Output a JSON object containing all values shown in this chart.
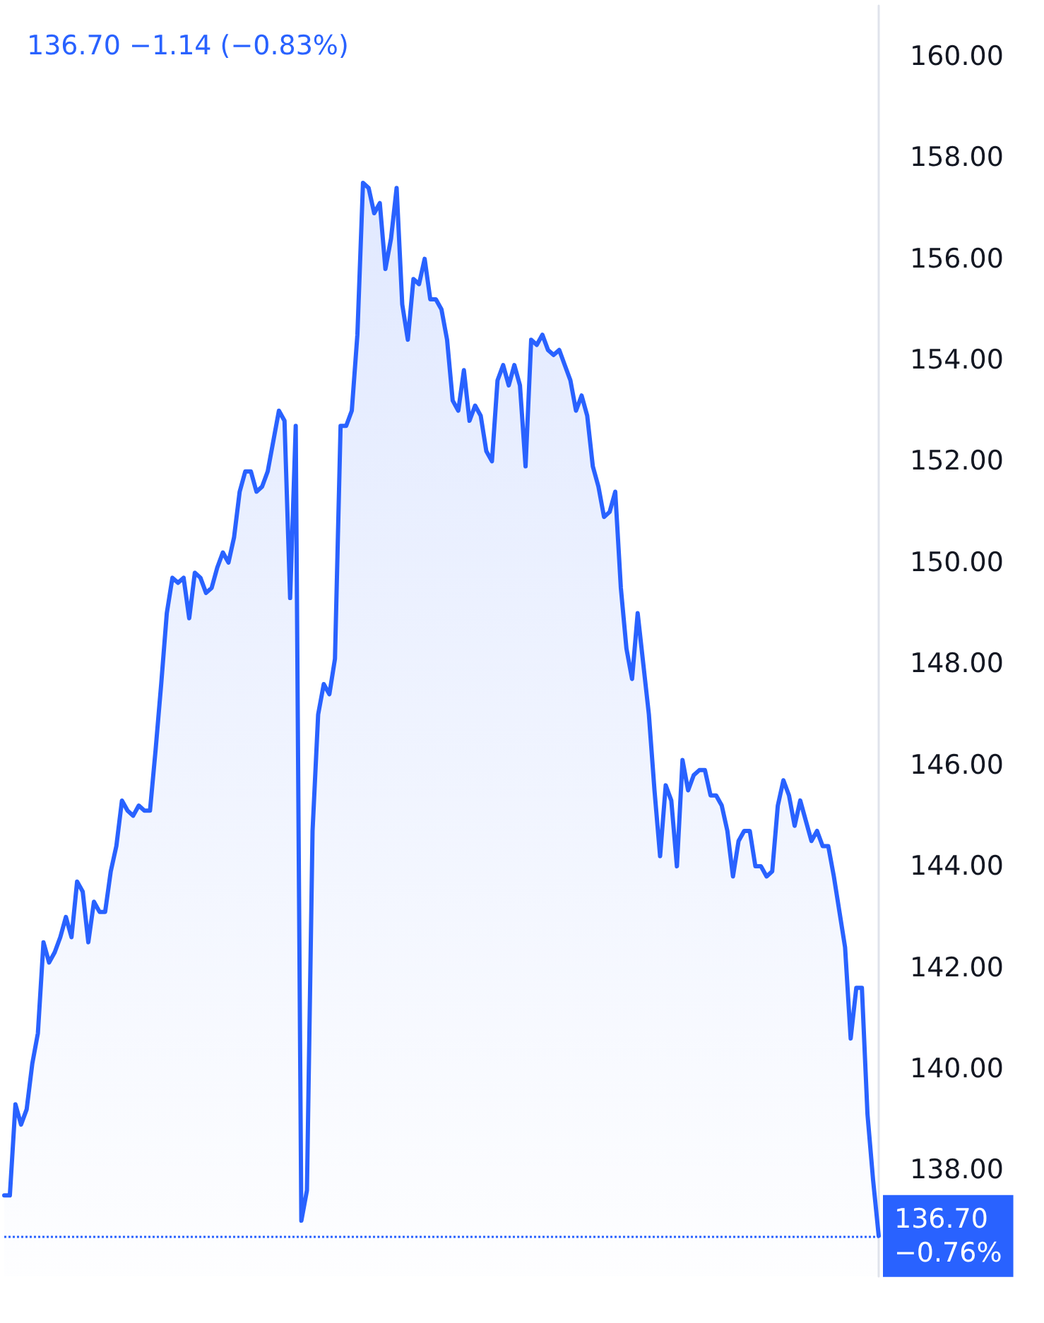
{
  "chart_data": {
    "type": "area",
    "title": "136.70 −1.14 (−0.83%)",
    "categories": [
      null,
      null,
      null,
      null,
      null,
      null,
      null,
      null,
      null,
      null,
      null,
      null,
      null,
      null,
      null,
      null,
      null,
      null,
      null,
      null,
      null,
      null,
      null,
      null,
      null,
      null,
      null,
      null,
      null,
      null,
      null,
      null,
      null,
      null,
      null,
      null,
      null,
      null,
      null,
      null,
      null,
      null,
      null,
      null,
      null,
      null,
      null,
      null,
      null,
      null,
      null,
      null,
      null,
      null,
      null,
      null,
      null,
      null,
      null,
      null,
      null,
      null,
      null,
      null,
      null,
      null,
      null,
      null,
      null,
      null,
      null,
      null,
      null,
      null,
      null,
      null,
      null,
      null,
      null,
      null,
      null,
      null,
      null,
      null,
      null,
      null,
      null,
      null,
      null,
      null,
      null,
      null,
      null,
      null,
      null,
      null,
      null,
      null,
      null,
      null,
      null,
      null,
      null,
      null,
      null,
      null,
      null,
      null,
      null,
      null,
      null,
      null,
      null,
      null,
      null,
      null,
      null,
      null,
      null,
      null,
      null,
      null,
      null,
      null,
      null,
      null,
      null,
      null,
      null,
      null,
      null,
      null,
      null,
      null,
      null,
      null,
      null,
      null,
      null,
      null,
      null,
      null,
      null,
      null,
      null,
      null,
      null,
      null,
      null,
      null,
      null,
      null,
      null,
      null,
      null,
      null,
      null
    ],
    "series": [
      {
        "color": "#2962ff",
        "values": [
          137.5,
          137.5,
          139.3,
          138.9,
          139.2,
          140.1,
          140.7,
          142.5,
          142.1,
          142.3,
          142.6,
          143.0,
          142.6,
          143.7,
          143.5,
          142.5,
          143.3,
          143.1,
          143.1,
          143.9,
          144.4,
          145.3,
          145.1,
          145.0,
          145.2,
          145.1,
          145.1,
          146.3,
          147.6,
          149.0,
          149.7,
          149.6,
          149.7,
          148.9,
          149.8,
          149.7,
          149.4,
          149.5,
          149.9,
          150.2,
          150.0,
          150.5,
          151.4,
          151.8,
          151.8,
          151.4,
          151.5,
          151.8,
          152.4,
          153.0,
          152.8,
          149.3,
          152.7,
          137.0,
          137.6,
          144.7,
          147.0,
          147.6,
          147.4,
          148.1,
          152.7,
          152.7,
          153.0,
          154.5,
          157.5,
          157.4,
          156.9,
          157.1,
          155.8,
          156.4,
          157.4,
          155.1,
          154.4,
          155.6,
          155.5,
          156.0,
          155.2,
          155.2,
          155.0,
          154.4,
          153.2,
          153.0,
          153.8,
          152.8,
          153.1,
          152.9,
          152.2,
          152.0,
          153.6,
          153.9,
          153.5,
          153.9,
          153.5,
          151.9,
          154.4,
          154.3,
          154.5,
          154.2,
          154.1,
          154.2,
          153.9,
          153.6,
          153.0,
          153.3,
          152.9,
          151.9,
          151.5,
          150.9,
          151.0,
          151.4,
          149.5,
          148.3,
          147.7,
          149.0,
          148.0,
          147.0,
          145.5,
          144.2,
          145.6,
          145.3,
          144.0,
          146.1,
          145.5,
          145.8,
          145.9,
          145.9,
          145.4,
          145.4,
          145.2,
          144.7,
          143.8,
          144.5,
          144.7,
          144.7,
          144.0,
          144.0,
          143.8,
          143.9,
          145.2,
          145.7,
          145.4,
          144.8,
          145.3,
          144.9,
          144.5,
          144.7,
          144.4,
          144.4,
          143.8,
          143.1,
          142.4,
          140.6,
          141.6,
          141.6,
          139.1,
          137.8,
          136.7
        ]
      }
    ],
    "ylim": [
      135.9,
      161.0
    ],
    "yticks": [
      {
        "value": 138,
        "label": "138.00"
      },
      {
        "value": 140,
        "label": "140.00"
      },
      {
        "value": 142,
        "label": "142.00"
      },
      {
        "value": 144,
        "label": "144.00"
      },
      {
        "value": 146,
        "label": "146.00"
      },
      {
        "value": 148,
        "label": "148.00"
      },
      {
        "value": 150,
        "label": "150.00"
      },
      {
        "value": 152,
        "label": "152.00"
      },
      {
        "value": 154,
        "label": "154.00"
      },
      {
        "value": 156,
        "label": "156.00"
      },
      {
        "value": 158,
        "label": "158.00"
      },
      {
        "value": 160,
        "label": "160.00"
      }
    ],
    "ref_lines": [
      {
        "axis": "y",
        "value": 136.7,
        "label": "136.70\n−0.76%",
        "color": "#2962ff",
        "line_style": "dotted"
      }
    ],
    "marker": "none",
    "line_style": "solid"
  }
}
